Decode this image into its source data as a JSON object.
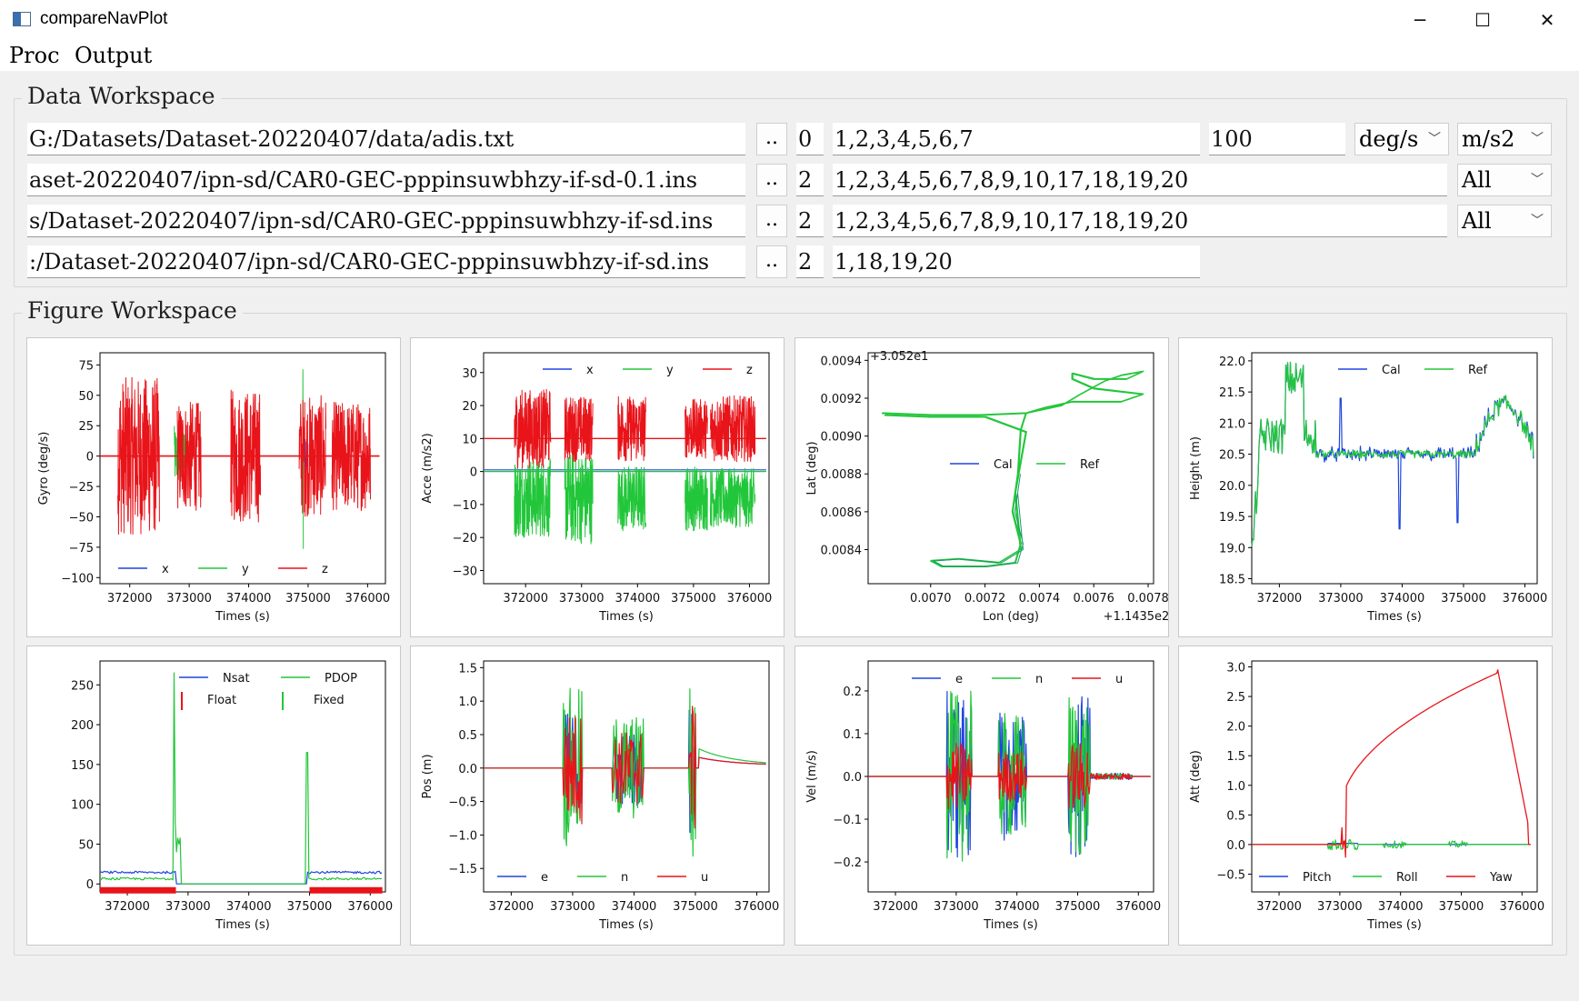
{
  "window": {
    "title": "compareNavPlot",
    "minimize": "─",
    "maximize": "☐",
    "close": "✕"
  },
  "menu": [
    "Proc",
    "Output"
  ],
  "data_workspace": {
    "title": "Data Workspace",
    "rows": [
      {
        "path": "G:/Datasets/Dataset-20220407/data/adis.txt",
        "browse": "..",
        "skip": "0",
        "cols": "1,2,3,4,5,6,7",
        "rate": "100",
        "unit1": "deg/s",
        "unit2": "m/s2"
      },
      {
        "path": "aset-20220407/ipn-sd/CAR0-GEC-pppinsuwbhzy-if-sd-0.1.ins",
        "browse": "..",
        "skip": "2",
        "cols": "1,2,3,4,5,6,7,8,9,10,17,18,19,20",
        "sel": "All"
      },
      {
        "path": "s/Dataset-20220407/ipn-sd/CAR0-GEC-pppinsuwbhzy-if-sd.ins",
        "browse": "..",
        "skip": "2",
        "cols": "1,2,3,4,5,6,7,8,9,10,17,18,19,20",
        "sel": "All"
      },
      {
        "path": ":/Dataset-20220407/ipn-sd/CAR0-GEC-pppinsuwbhzy-if-sd.ins",
        "browse": "..",
        "skip": "2",
        "cols": "1,18,19,20"
      }
    ]
  },
  "figure_workspace": {
    "title": "Figure Workspace"
  },
  "colors": {
    "blue": "#1f45e0",
    "green": "#22c63a",
    "red": "#e8141a"
  },
  "chart_data": [
    {
      "id": "gyro",
      "type": "line",
      "ylabel": "Gyro (deg/s)",
      "xlabel": "Times (s)",
      "xlim": [
        371500,
        376300
      ],
      "ylim": [
        -105,
        85
      ],
      "xticks": [
        372000,
        373000,
        374000,
        375000,
        376000
      ],
      "yticks": [
        75,
        50,
        25,
        0,
        -25,
        -50,
        -75,
        -100
      ],
      "legend": [
        "x",
        "y",
        "z"
      ],
      "legend_pos": "bottom",
      "series": [
        {
          "name": "x",
          "color": "blue",
          "bursts": [
            [
              372400,
              0,
              5
            ],
            [
              374950,
              0,
              45
            ]
          ],
          "baseline": 0
        },
        {
          "name": "y",
          "color": "green",
          "bursts": [
            [
              372850,
              0,
              70
            ],
            [
              374900,
              0,
              80
            ]
          ],
          "baseline": 0
        },
        {
          "name": "z",
          "color": "red",
          "bursts": [
            [
              371800,
              0,
              65
            ],
            [
              372350,
              0,
              65
            ],
            [
              372850,
              0,
              50
            ],
            [
              373700,
              0,
              60
            ],
            [
              374850,
              0,
              55
            ],
            [
              375700,
              0,
              60
            ]
          ],
          "baseline": 0
        }
      ]
    },
    {
      "id": "acce",
      "type": "line",
      "ylabel": "Acce (m/s2)",
      "xlabel": "Times (s)",
      "xlim": [
        371250,
        376350
      ],
      "ylim": [
        -34,
        36
      ],
      "xticks": [
        372000,
        373000,
        374000,
        375000,
        376000
      ],
      "yticks": [
        30,
        20,
        10,
        0,
        -10,
        -20,
        -30
      ],
      "legend": [
        "x",
        "y",
        "z"
      ],
      "legend_pos": "top",
      "series": [
        {
          "name": "x",
          "color": "blue",
          "baseline": 0.5
        },
        {
          "name": "y",
          "color": "green",
          "baseline": 0
        },
        {
          "name": "z",
          "color": "red",
          "baseline": 10
        }
      ]
    },
    {
      "id": "traj",
      "type": "line",
      "ylabel": "Lat (deg)",
      "xlabel": "Lon (deg)",
      "xlim": [
        0.00677,
        0.00782
      ],
      "ylim": [
        0.00822,
        0.00944
      ],
      "xticks": [
        0.007,
        0.0072,
        0.0074,
        0.0076,
        0.0078
      ],
      "yticks": [
        0.0094,
        0.0092,
        0.009,
        0.0088,
        0.0086,
        0.0084
      ],
      "offset_x": "+1.1435e2",
      "offset_y": "+3.052e1",
      "legend": [
        "Cal",
        "Ref"
      ],
      "legend_pos": "center-right"
    },
    {
      "id": "height",
      "type": "line",
      "ylabel": "Height (m)",
      "xlabel": "Times (s)",
      "xlim": [
        371550,
        376200
      ],
      "ylim": [
        18.42,
        22.13
      ],
      "xticks": [
        372000,
        373000,
        374000,
        375000,
        376000
      ],
      "yticks": [
        22.0,
        21.5,
        21.0,
        20.5,
        20.0,
        19.5,
        19.0,
        18.5
      ],
      "legend": [
        "Cal",
        "Ref"
      ],
      "legend_pos": "top"
    },
    {
      "id": "nsat",
      "type": "line",
      "xlabel": "Times (s)",
      "xlim": [
        371550,
        376250
      ],
      "ylim": [
        -10,
        280
      ],
      "xticks": [
        372000,
        373000,
        374000,
        375000,
        376000
      ],
      "yticks": [
        250,
        200,
        150,
        100,
        50,
        0
      ],
      "legend": [
        "Nsat",
        "PDOP",
        "Float",
        "Fixed"
      ],
      "legend_pos": "top-right"
    },
    {
      "id": "pos",
      "type": "line",
      "ylabel": "Pos (m)",
      "xlabel": "Times (s)",
      "xlim": [
        371550,
        376200
      ],
      "ylim": [
        -1.85,
        1.6
      ],
      "xticks": [
        372000,
        373000,
        374000,
        375000,
        376000
      ],
      "yticks": [
        1.5,
        1.0,
        0.5,
        0.0,
        -0.5,
        -1.0,
        -1.5
      ],
      "legend": [
        "e",
        "n",
        "u"
      ],
      "legend_pos": "bottom"
    },
    {
      "id": "vel",
      "type": "line",
      "ylabel": "Vel (m/s)",
      "xlabel": "Times (s)",
      "xlim": [
        371550,
        376250
      ],
      "ylim": [
        -0.27,
        0.27
      ],
      "xticks": [
        372000,
        373000,
        374000,
        375000,
        376000
      ],
      "yticks": [
        0.2,
        0.1,
        0.0,
        -0.1,
        -0.2
      ],
      "legend": [
        "e",
        "n",
        "u"
      ],
      "legend_pos": "top"
    },
    {
      "id": "att",
      "type": "line",
      "ylabel": "Att (deg)",
      "xlabel": "Times (s)",
      "xlim": [
        371550,
        376250
      ],
      "ylim": [
        -0.8,
        3.1
      ],
      "xticks": [
        372000,
        373000,
        374000,
        375000,
        376000
      ],
      "yticks": [
        3.0,
        2.5,
        2.0,
        1.5,
        1.0,
        0.5,
        0.0,
        -0.5
      ],
      "legend": [
        "Pitch",
        "Roll",
        "Yaw"
      ],
      "legend_pos": "bottom"
    }
  ]
}
